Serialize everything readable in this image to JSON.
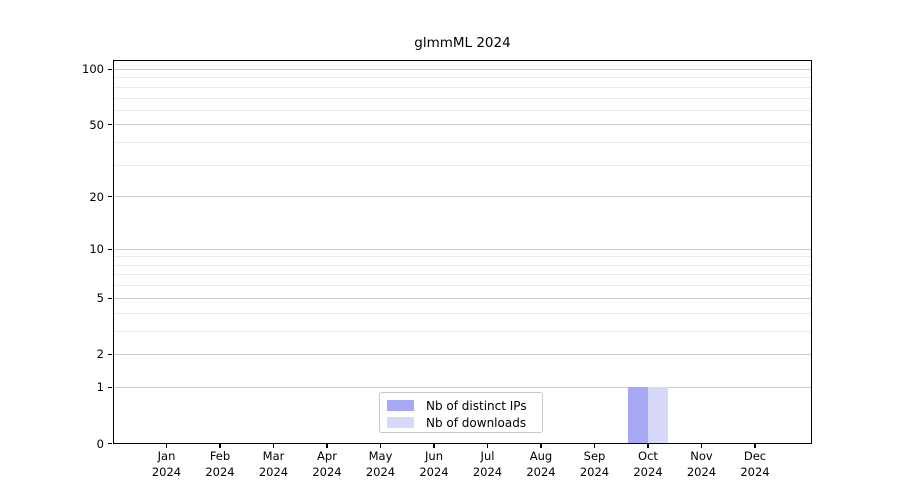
{
  "figure": {
    "background": "#ffffff"
  },
  "chart_data": {
    "type": "bar",
    "title": "glmmML 2024",
    "xlabel": "",
    "ylabel": "",
    "categories": [
      "Jan 2024",
      "Feb 2024",
      "Mar 2024",
      "Apr 2024",
      "May 2024",
      "Jun 2024",
      "Jul 2024",
      "Aug 2024",
      "Sep 2024",
      "Oct 2024",
      "Nov 2024",
      "Dec 2024"
    ],
    "series": [
      {
        "name": "Nb of distinct IPs",
        "color": "#a8a8f6",
        "values": [
          0,
          0,
          0,
          0,
          0,
          0,
          0,
          0,
          0,
          1,
          0,
          0
        ]
      },
      {
        "name": "Nb of downloads",
        "color": "#d8d8f9",
        "values": [
          0,
          0,
          0,
          0,
          0,
          0,
          0,
          0,
          0,
          1,
          0,
          0
        ]
      }
    ],
    "y_scale": "log10(1+x)",
    "y_ticks": [
      0,
      1,
      2,
      5,
      10,
      20,
      50,
      100
    ],
    "y_minor_gridlines": [
      3,
      4,
      6,
      7,
      8,
      9,
      30,
      40,
      60,
      70,
      80,
      90
    ],
    "ylim": [
      0,
      112
    ],
    "grid": true,
    "legend_position": "inside-bottom-center"
  },
  "legend": {
    "items": [
      {
        "label": "Nb of distinct IPs",
        "color": "#a8a8f6"
      },
      {
        "label": "Nb of downloads",
        "color": "#d8d8f9"
      }
    ]
  },
  "colors": {
    "axis": "#000000",
    "grid_major": "#cccccc",
    "grid_minor": "#ebebeb",
    "legend_border": "#c8c8c8"
  }
}
